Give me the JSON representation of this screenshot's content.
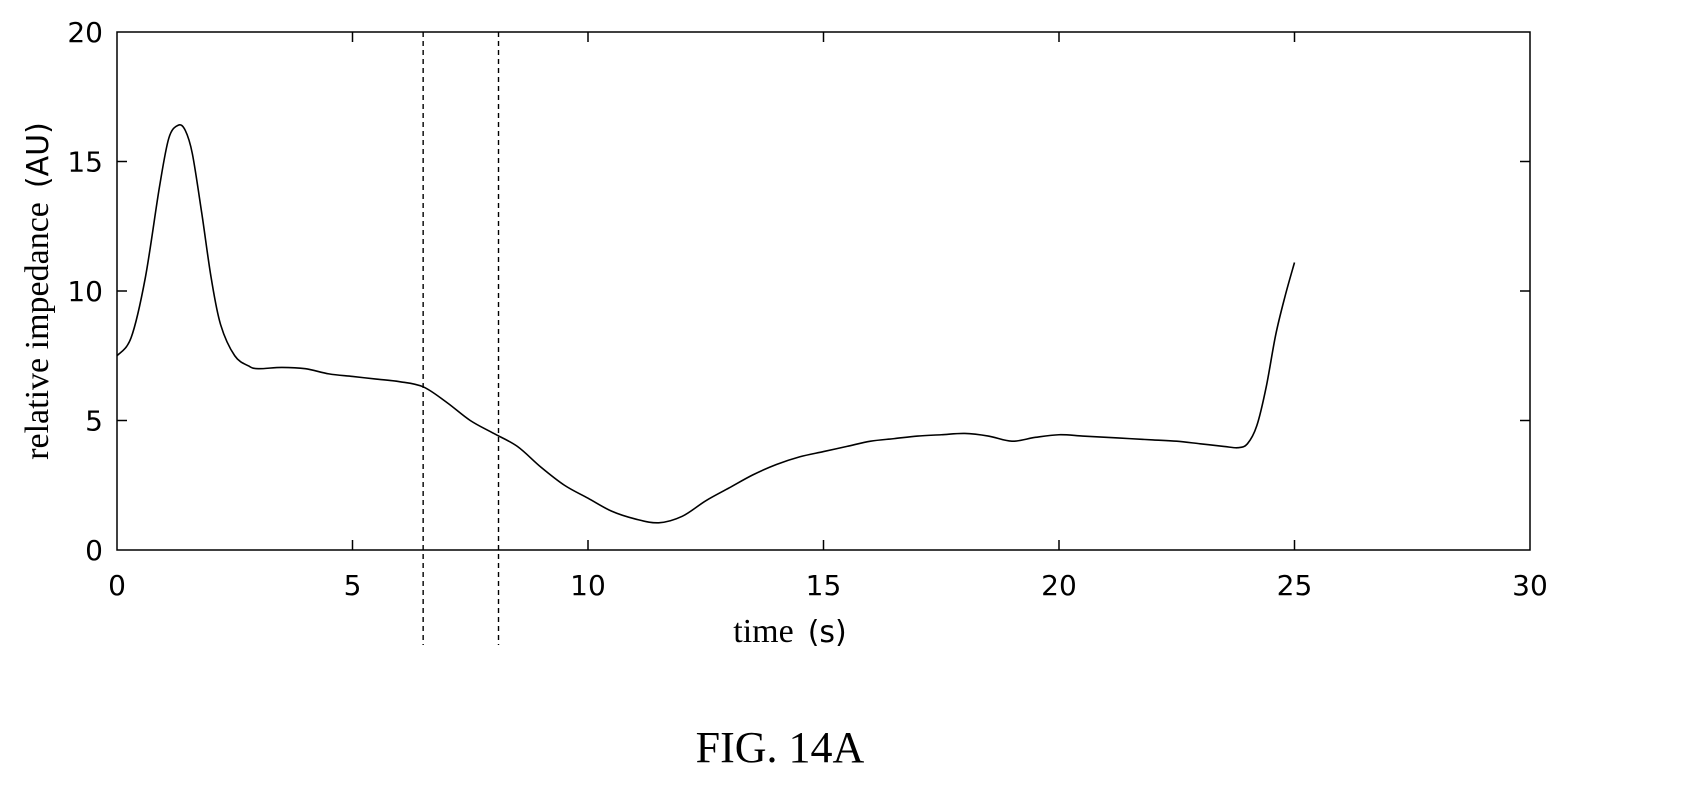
{
  "figure_caption": "FIG. 14A",
  "chart_data": {
    "type": "line",
    "xlabel": "time",
    "xlabel_unit": "(s)",
    "ylabel": "relative impedance",
    "ylabel_unit": "(AU)",
    "xlim": [
      0,
      30
    ],
    "ylim": [
      0,
      20
    ],
    "x_ticks": [
      0,
      5,
      10,
      15,
      20,
      25,
      30
    ],
    "y_ticks": [
      0,
      5,
      10,
      15,
      20
    ],
    "grid": false,
    "vertical_markers": [
      6.5,
      8.1
    ],
    "series": [
      {
        "x": [
          0,
          0.3,
          0.6,
          0.9,
          1.1,
          1.3,
          1.45,
          1.6,
          1.8,
          2.0,
          2.2,
          2.5,
          2.8,
          3.0,
          3.5,
          4.0,
          4.5,
          5.0,
          5.5,
          6.0,
          6.5,
          7.0,
          7.5,
          8.0,
          8.5,
          9.0,
          9.5,
          10.0,
          10.5,
          11.0,
          11.5,
          12.0,
          12.5,
          13.0,
          13.5,
          14.0,
          14.5,
          15.0,
          15.5,
          16.0,
          16.5,
          17.0,
          17.5,
          18.0,
          18.5,
          19.0,
          19.5,
          20.0,
          20.5,
          21.0,
          21.5,
          22.0,
          22.5,
          23.0,
          23.5,
          23.8,
          24.0,
          24.2,
          24.4,
          24.6,
          24.8,
          25.0
        ],
        "y": [
          7.5,
          8.2,
          10.5,
          14.0,
          15.9,
          16.4,
          16.2,
          15.3,
          13.0,
          10.5,
          8.7,
          7.5,
          7.1,
          7.0,
          7.05,
          7.0,
          6.8,
          6.7,
          6.6,
          6.5,
          6.3,
          5.7,
          5.0,
          4.5,
          4.0,
          3.2,
          2.5,
          2.0,
          1.5,
          1.2,
          1.05,
          1.3,
          1.9,
          2.4,
          2.9,
          3.3,
          3.6,
          3.8,
          4.0,
          4.2,
          4.3,
          4.4,
          4.45,
          4.5,
          4.4,
          4.2,
          4.35,
          4.45,
          4.4,
          4.35,
          4.3,
          4.25,
          4.2,
          4.1,
          4.0,
          3.95,
          4.1,
          4.8,
          6.3,
          8.3,
          9.8,
          11.1
        ]
      }
    ]
  }
}
